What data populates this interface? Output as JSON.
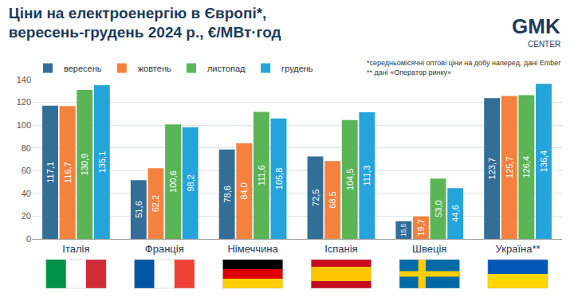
{
  "chart_data": {
    "type": "bar",
    "title": "Ціни на електроенергію в Європі*,",
    "subtitle": "вересень-грудень 2024 р., €/МВт·год",
    "categories": [
      "Італія",
      "Франція",
      "Німеччина",
      "Іспанія",
      "Швеція",
      "Україна**"
    ],
    "series": [
      {
        "name": "вересень",
        "color": "#336e96",
        "values": [
          117.1,
          51.6,
          78.6,
          72.5,
          15.5,
          123.7
        ],
        "value_labels": [
          "117,1",
          "51,6",
          "78,6",
          "72,5",
          "15,5",
          "123,7"
        ]
      },
      {
        "name": "жовтень",
        "color": "#f5813f",
        "values": [
          116.7,
          62.2,
          84.0,
          68.5,
          19.7,
          125.7
        ],
        "value_labels": [
          "116,7",
          "62,2",
          "84,0",
          "68,5",
          "19,7",
          "125,7"
        ]
      },
      {
        "name": "листопад",
        "color": "#5bb556",
        "values": [
          130.9,
          100.6,
          111.6,
          104.5,
          53.0,
          126.4
        ],
        "value_labels": [
          "130,9",
          "100,6",
          "111,6",
          "104,5",
          "53,0",
          "126,4"
        ]
      },
      {
        "name": "грудень",
        "color": "#25a4dc",
        "values": [
          135.1,
          98.2,
          105.8,
          111.3,
          44.6,
          136.4
        ],
        "value_labels": [
          "135,1",
          "98,2",
          "105,8",
          "111,3",
          "44,6",
          "136,4"
        ]
      }
    ],
    "ylim": [
      0,
      140
    ],
    "yticks": [
      0,
      20,
      40,
      60,
      80,
      100,
      120,
      140
    ],
    "grid": true,
    "legend": "top left",
    "data_labels": true,
    "stacked": false,
    "annotations": [
      "*середньомісячні оптові ціни на добу наперед, дані Ember",
      "** дані «Оператор ринку»"
    ]
  },
  "logo": [
    "GMK",
    "CENTER"
  ]
}
